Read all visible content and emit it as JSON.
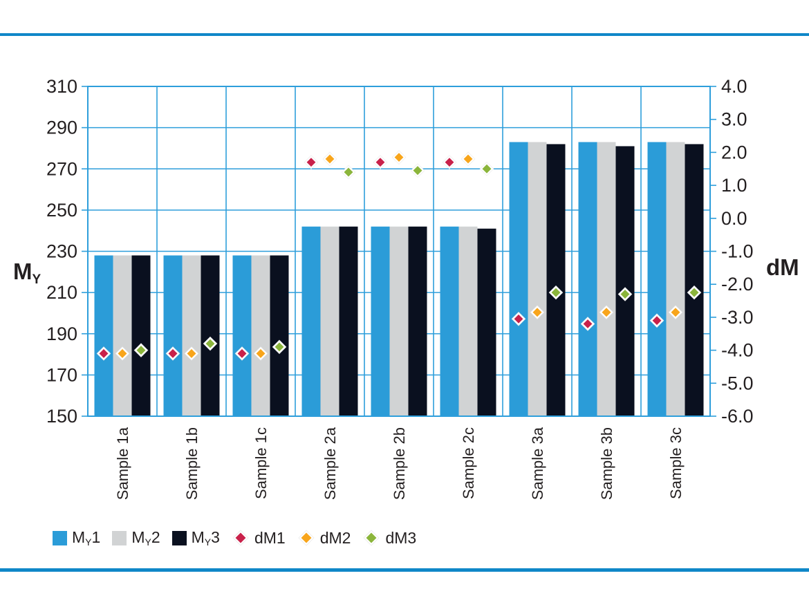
{
  "style": {
    "background": "#ffffff",
    "rule_color": "#0f87c8",
    "grid_color": "#2d9edb",
    "text_color": "#231f20",
    "marker_halo_color": "#e7e7e7",
    "marker_stroke_color": "#ffffff"
  },
  "chart_data": {
    "type": "bar",
    "subtype": "grouped bars with diamond scatter overlay, dual y-axes",
    "categories": [
      "Sample 1a",
      "Sample 1b",
      "Sample 1c",
      "Sample 2a",
      "Sample 2b",
      "Sample 2c",
      "Sample 3a",
      "Sample 3b",
      "Sample 3c"
    ],
    "bar_series": [
      {
        "name": "My1",
        "legend": {
          "base": "M",
          "sub": "Y",
          "suffix": "1"
        },
        "color": "#2b9cd8",
        "values": [
          228,
          228,
          228,
          242,
          242,
          242,
          283,
          283,
          283
        ]
      },
      {
        "name": "My2",
        "legend": {
          "base": "M",
          "sub": "Y",
          "suffix": "2"
        },
        "color": "#d1d3d4",
        "values": [
          228,
          228,
          228,
          242,
          242,
          242,
          283,
          283,
          283
        ]
      },
      {
        "name": "My3",
        "legend": {
          "base": "M",
          "sub": "Y",
          "suffix": "3"
        },
        "color": "#0a101f",
        "values": [
          228,
          228,
          228,
          242,
          242,
          241,
          282,
          281,
          282
        ]
      }
    ],
    "marker_series": [
      {
        "name": "dM1",
        "legend": {
          "base": "dM1"
        },
        "color": "#c9214a",
        "values": [
          -4.1,
          -4.1,
          -4.1,
          1.7,
          1.7,
          1.7,
          -3.05,
          -3.2,
          -3.1
        ]
      },
      {
        "name": "dM2",
        "legend": {
          "base": "dM2"
        },
        "color": "#f8a51b",
        "values": [
          -4.1,
          -4.1,
          -4.1,
          1.8,
          1.85,
          1.8,
          -2.85,
          -2.85,
          -2.85
        ]
      },
      {
        "name": "dM3",
        "legend": {
          "base": "dM3"
        },
        "color": "#8bb53b",
        "values": [
          -4.0,
          -3.8,
          -3.9,
          1.4,
          1.45,
          1.5,
          -2.25,
          -2.3,
          -2.25
        ]
      }
    ],
    "left_axis": {
      "title": {
        "base": "M",
        "sub": "Y"
      },
      "min": 150,
      "max": 310,
      "tick_values": [
        310,
        290,
        270,
        250,
        230,
        210,
        190,
        170,
        150
      ],
      "tick_labels": [
        "310",
        "290",
        "270",
        "250",
        "230",
        "210",
        "190",
        "170",
        "150"
      ]
    },
    "right_axis": {
      "title": {
        "base": "dM"
      },
      "min": -6,
      "max": 4,
      "tick_values": [
        4,
        3,
        2,
        1,
        0,
        -1,
        -2,
        -3,
        -4,
        -5,
        -6
      ],
      "tick_labels": [
        "4.0",
        "3.0",
        "2.0",
        "1.0",
        "0.0",
        "-1.0",
        "-2.0",
        "-3.0",
        "-4.0",
        "-5.0",
        "-6.0"
      ]
    },
    "grid": {
      "horizontal": "every 20 left-axis units",
      "vertical": "one column per category",
      "legend_position": "bottom-left"
    }
  }
}
